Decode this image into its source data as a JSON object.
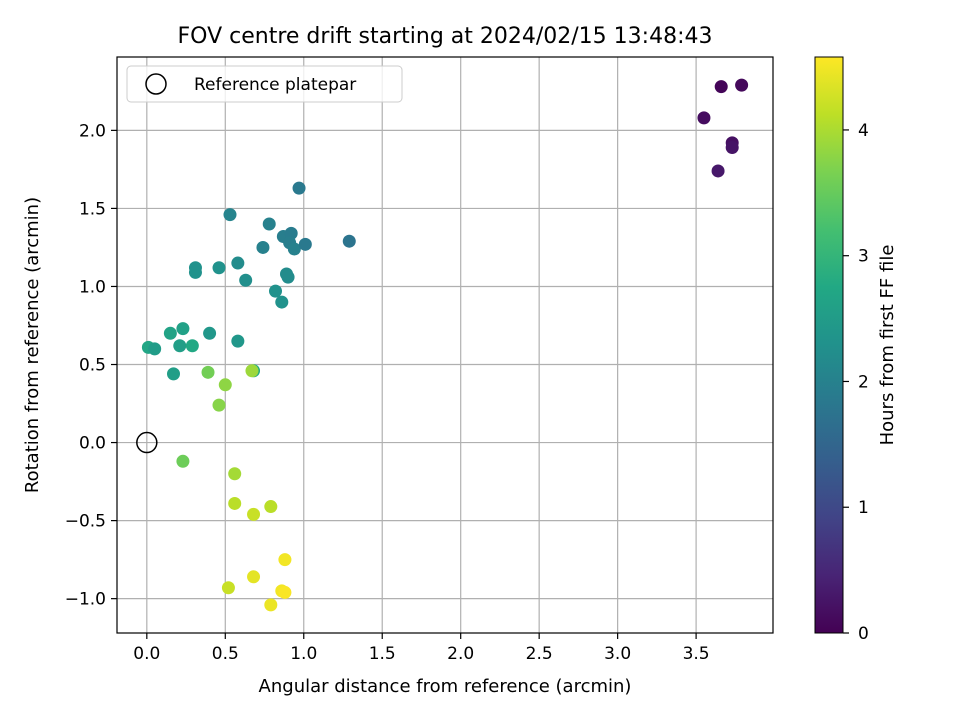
{
  "chart_data": {
    "type": "scatter",
    "title": "FOV centre drift starting at 2024/02/15 13:48:43",
    "xlabel": "Angular distance from reference (arcmin)",
    "ylabel": "Rotation from reference (arcmin)",
    "xlim": [
      -0.19,
      3.99
    ],
    "ylim": [
      -1.22,
      2.47
    ],
    "xticks": [
      0.0,
      0.5,
      1.0,
      1.5,
      2.0,
      2.5,
      3.0,
      3.5
    ],
    "yticks": [
      -1.0,
      -0.5,
      0.0,
      0.5,
      1.0,
      1.5,
      2.0
    ],
    "xtick_labels": [
      "0.0",
      "0.5",
      "1.0",
      "1.5",
      "2.0",
      "2.5",
      "3.0",
      "3.5"
    ],
    "ytick_labels": [
      "−1.0",
      "−0.5",
      "0.0",
      "0.5",
      "1.0",
      "1.5",
      "2.0"
    ],
    "grid": true,
    "legend": {
      "placement": "upper-left",
      "entries": [
        "Reference platepar"
      ]
    },
    "reference_point": {
      "x": 0.0,
      "y": 0.0
    },
    "colorbar": {
      "label": "Hours from first FF file",
      "range": [
        0,
        4.58
      ],
      "ticks": [
        0,
        1,
        2,
        3,
        4
      ],
      "tick_labels": [
        "0",
        "1",
        "2",
        "3",
        "4"
      ],
      "colormap": "viridis"
    },
    "points": [
      {
        "x": 3.66,
        "y": 2.28,
        "c": 0.05
      },
      {
        "x": 3.79,
        "y": 2.29,
        "c": 0.1
      },
      {
        "x": 3.55,
        "y": 2.08,
        "c": 0.15
      },
      {
        "x": 3.73,
        "y": 1.92,
        "c": 0.2
      },
      {
        "x": 3.73,
        "y": 1.89,
        "c": 0.25
      },
      {
        "x": 3.64,
        "y": 1.74,
        "c": 0.3
      },
      {
        "x": 0.97,
        "y": 1.63,
        "c": 1.85
      },
      {
        "x": 0.53,
        "y": 1.46,
        "c": 2.05
      },
      {
        "x": 0.78,
        "y": 1.4,
        "c": 2.0
      },
      {
        "x": 0.87,
        "y": 1.32,
        "c": 1.95
      },
      {
        "x": 0.92,
        "y": 1.34,
        "c": 1.9
      },
      {
        "x": 0.91,
        "y": 1.28,
        "c": 1.95
      },
      {
        "x": 0.94,
        "y": 1.24,
        "c": 2.0
      },
      {
        "x": 1.01,
        "y": 1.27,
        "c": 1.85
      },
      {
        "x": 1.29,
        "y": 1.29,
        "c": 1.75
      },
      {
        "x": 0.74,
        "y": 1.25,
        "c": 2.0
      },
      {
        "x": 0.58,
        "y": 1.15,
        "c": 2.2
      },
      {
        "x": 0.31,
        "y": 1.12,
        "c": 2.3
      },
      {
        "x": 0.31,
        "y": 1.09,
        "c": 2.3
      },
      {
        "x": 0.46,
        "y": 1.12,
        "c": 2.3
      },
      {
        "x": 0.63,
        "y": 1.04,
        "c": 2.25
      },
      {
        "x": 0.89,
        "y": 1.08,
        "c": 2.2
      },
      {
        "x": 0.9,
        "y": 1.06,
        "c": 2.2
      },
      {
        "x": 0.82,
        "y": 0.97,
        "c": 2.3
      },
      {
        "x": 0.86,
        "y": 0.9,
        "c": 2.3
      },
      {
        "x": 0.4,
        "y": 0.7,
        "c": 2.4
      },
      {
        "x": 0.58,
        "y": 0.65,
        "c": 2.4
      },
      {
        "x": 0.23,
        "y": 0.73,
        "c": 2.6
      },
      {
        "x": 0.15,
        "y": 0.7,
        "c": 2.65
      },
      {
        "x": 0.21,
        "y": 0.62,
        "c": 2.55
      },
      {
        "x": 0.29,
        "y": 0.62,
        "c": 2.75
      },
      {
        "x": 0.01,
        "y": 0.61,
        "c": 2.7
      },
      {
        "x": 0.05,
        "y": 0.6,
        "c": 2.5
      },
      {
        "x": 0.17,
        "y": 0.44,
        "c": 2.55
      },
      {
        "x": 0.68,
        "y": 0.46,
        "c": 2.8
      },
      {
        "x": 0.39,
        "y": 0.45,
        "c": 3.6
      },
      {
        "x": 0.67,
        "y": 0.46,
        "c": 3.9
      },
      {
        "x": 0.5,
        "y": 0.37,
        "c": 3.8
      },
      {
        "x": 0.46,
        "y": 0.24,
        "c": 3.75
      },
      {
        "x": 0.23,
        "y": -0.12,
        "c": 3.55
      },
      {
        "x": 0.56,
        "y": -0.2,
        "c": 3.95
      },
      {
        "x": 0.56,
        "y": -0.39,
        "c": 4.1
      },
      {
        "x": 0.79,
        "y": -0.41,
        "c": 4.1
      },
      {
        "x": 0.68,
        "y": -0.46,
        "c": 4.2
      },
      {
        "x": 0.88,
        "y": -0.75,
        "c": 4.5
      },
      {
        "x": 0.68,
        "y": -0.86,
        "c": 4.4
      },
      {
        "x": 0.52,
        "y": -0.93,
        "c": 4.2
      },
      {
        "x": 0.86,
        "y": -0.95,
        "c": 4.5
      },
      {
        "x": 0.88,
        "y": -0.96,
        "c": 4.55
      },
      {
        "x": 0.79,
        "y": -1.04,
        "c": 4.45
      }
    ]
  }
}
